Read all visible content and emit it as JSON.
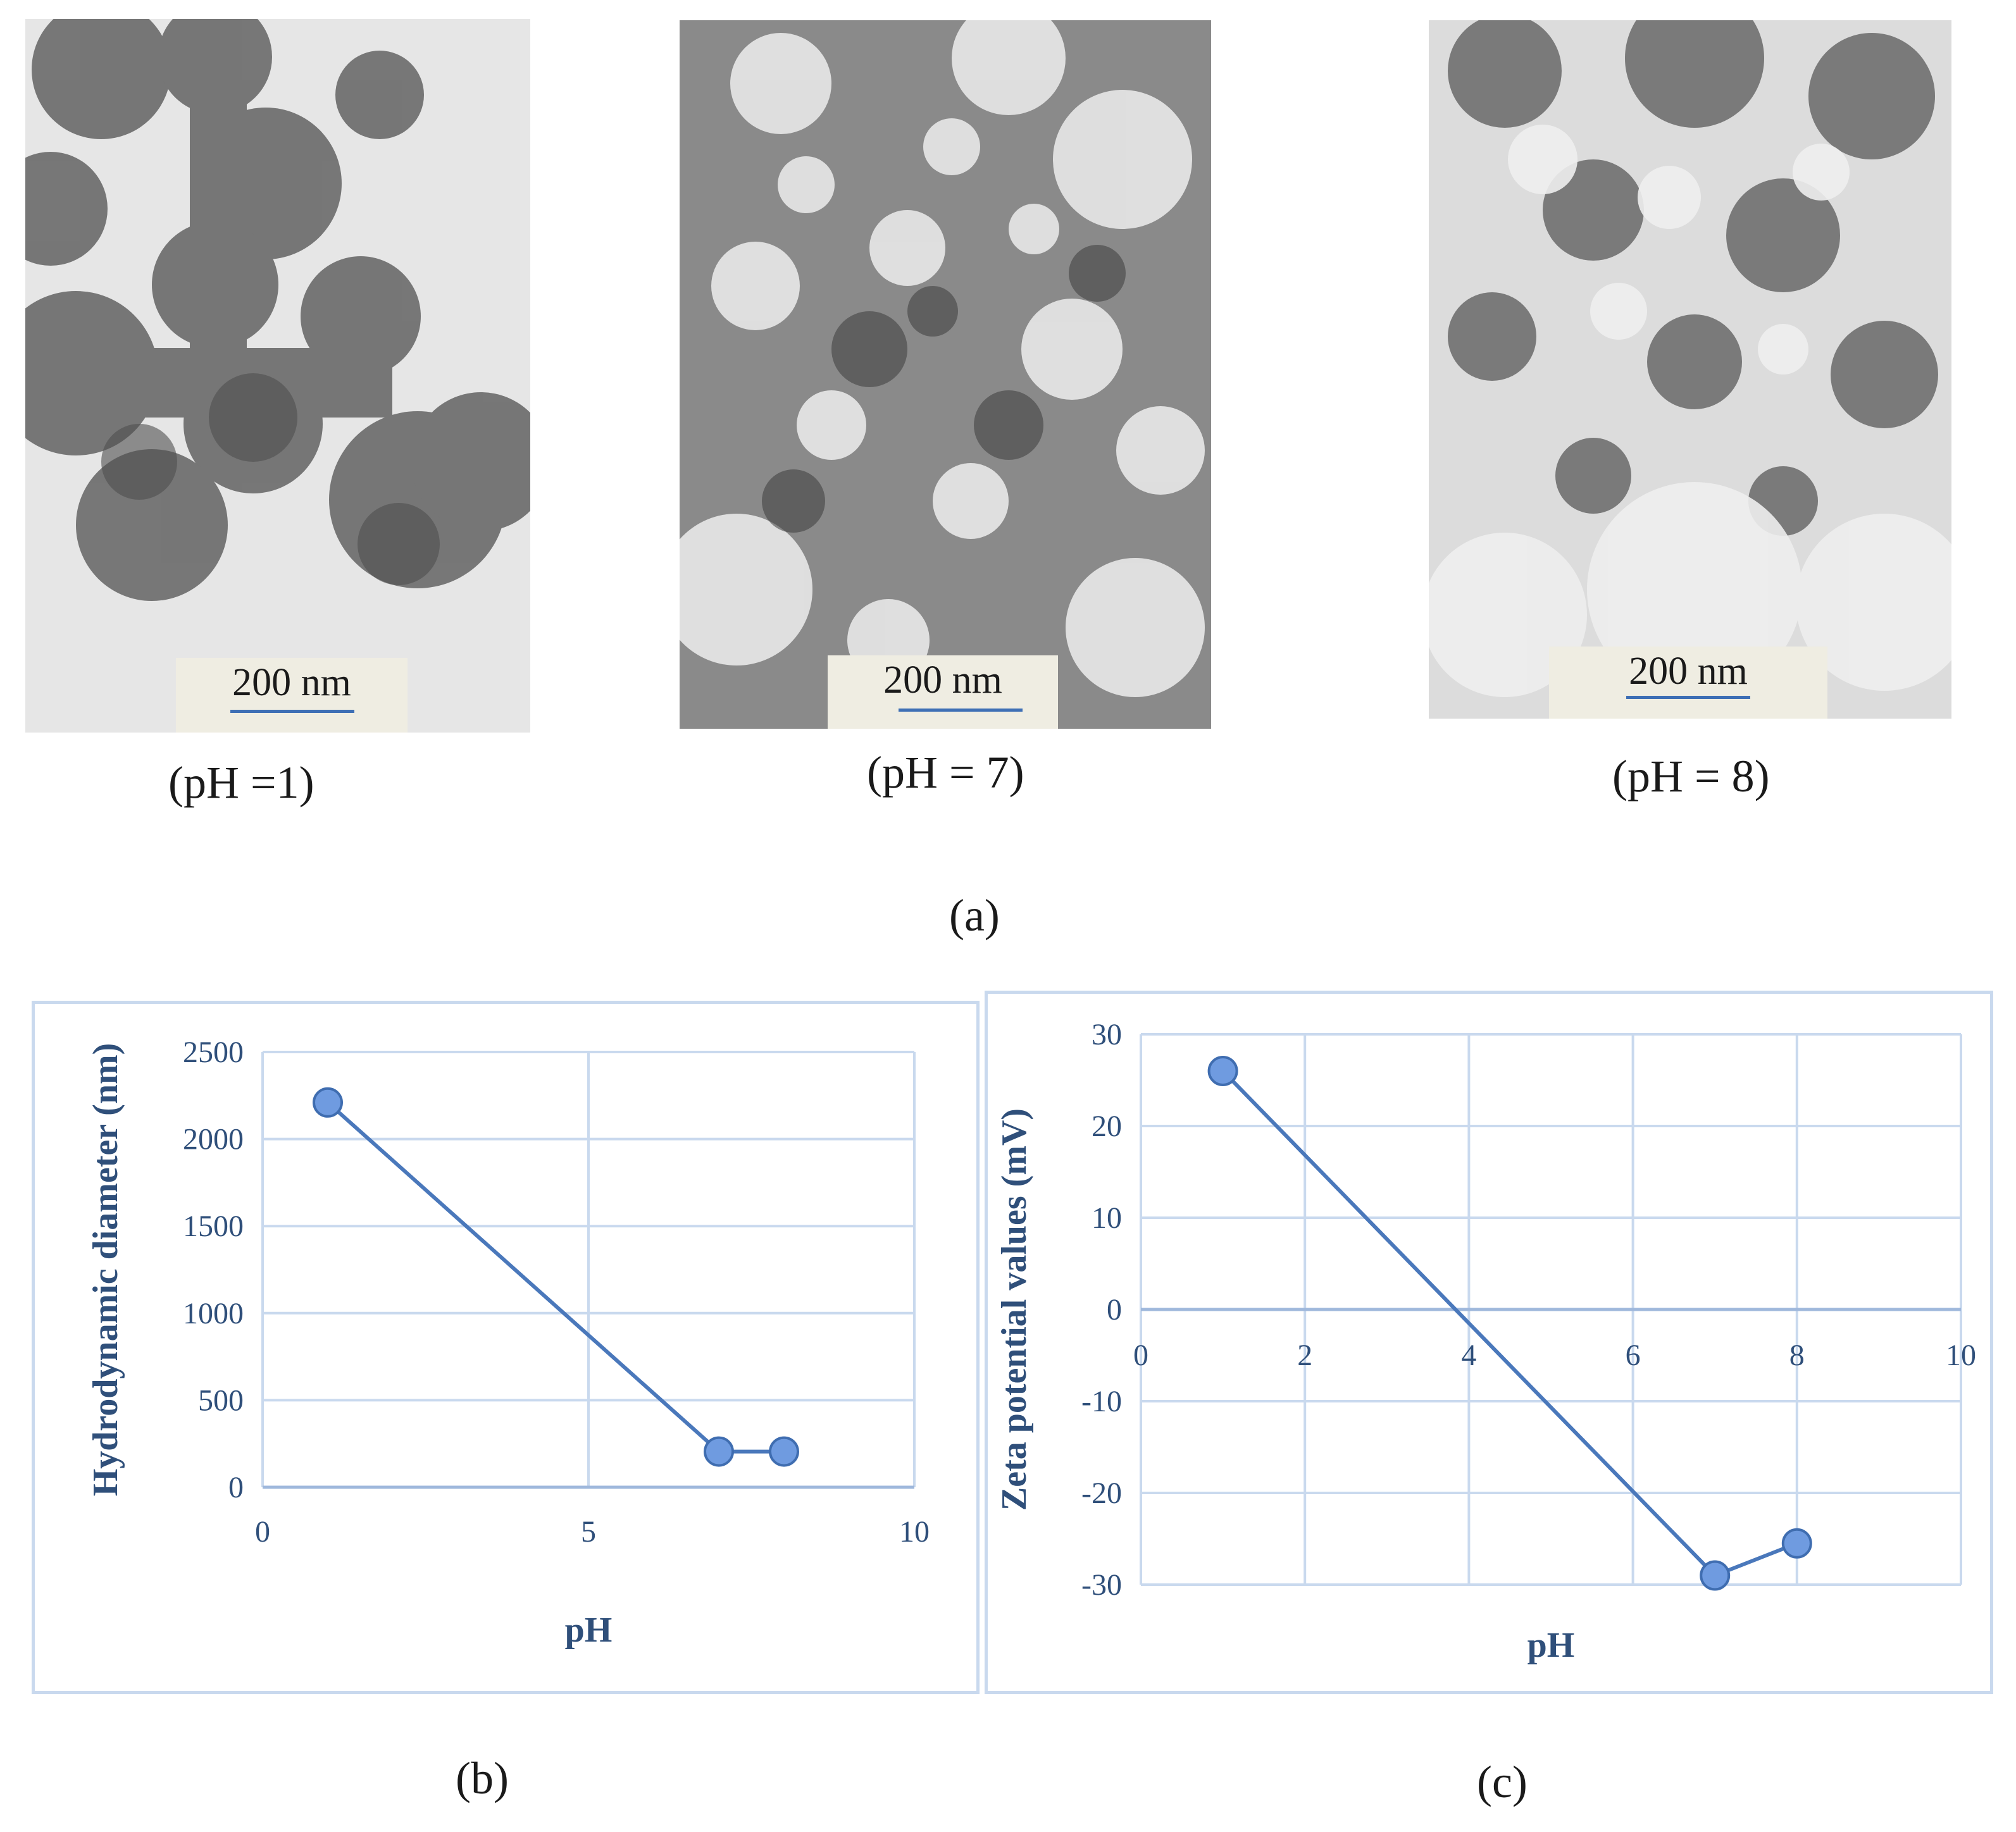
{
  "tem_panels": [
    {
      "ph_label": "(pH =1)",
      "scale_label": "200 nm"
    },
    {
      "ph_label": "(pH = 7)",
      "scale_label": "200 nm"
    },
    {
      "ph_label": "(pH = 8)",
      "scale_label": "200 nm"
    }
  ],
  "panel_labels": {
    "a": "(a)",
    "b": "(b)",
    "c": "(c)"
  },
  "colors": {
    "series": "#4a78bb",
    "marker": "#6f9be0",
    "grid": "#c9d9ee",
    "axis_text": "#2f4f7a"
  },
  "chart_data": [
    {
      "type": "line",
      "xlabel": "pH",
      "ylabel": "Hydrodynamic diameter (nm)",
      "xlim": [
        0,
        10
      ],
      "ylim": [
        0,
        2500
      ],
      "xticks": [
        "0",
        "5",
        "10"
      ],
      "yticks": [
        "0",
        "500",
        "1000",
        "1500",
        "2000",
        "2500"
      ],
      "grid": true,
      "series": [
        {
          "x": [
            1,
            7,
            8
          ],
          "y": [
            2210,
            205,
            205
          ]
        }
      ]
    },
    {
      "type": "line",
      "xlabel": "pH",
      "ylabel": "Zeta potential values (mV)",
      "xlim": [
        0,
        10
      ],
      "ylim": [
        -30,
        30
      ],
      "xticks": [
        "0",
        "2",
        "4",
        "6",
        "8",
        "10"
      ],
      "yticks": [
        "-30",
        "-20",
        "-10",
        "0",
        "10",
        "20",
        "30"
      ],
      "grid": true,
      "series": [
        {
          "x": [
            1,
            7,
            8
          ],
          "y": [
            26,
            -29,
            -25.5
          ]
        }
      ]
    }
  ]
}
